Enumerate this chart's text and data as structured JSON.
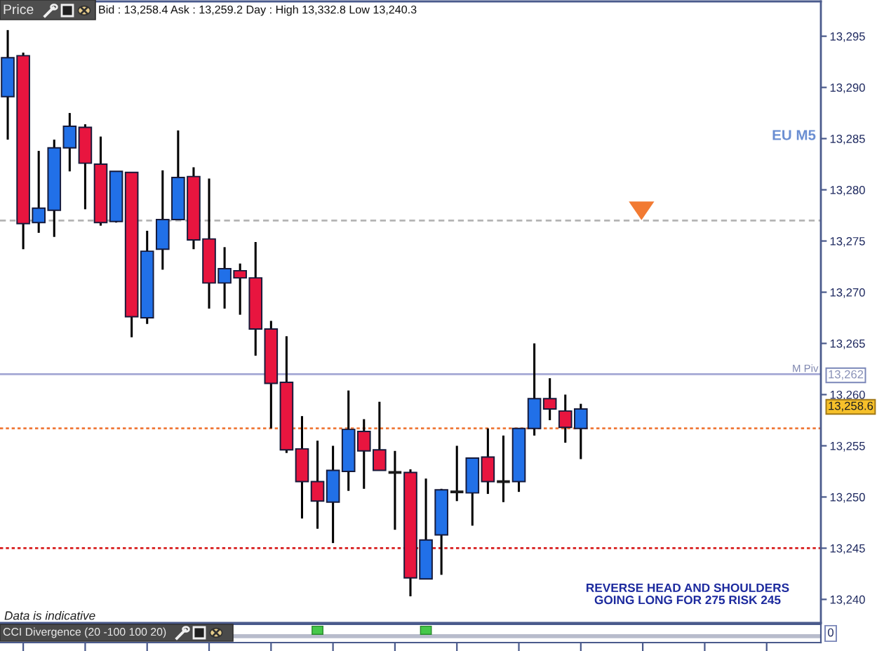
{
  "chart_data": {
    "type": "candlestick",
    "title": "Bid : 13,258.4 Ask : 13,259.2 Day : High 13,332.8 Low 13,240.3",
    "subtitle": "EU M5",
    "ylabel": "Price",
    "categories": [
      null,
      null,
      null,
      null,
      null,
      null,
      null,
      null,
      null,
      null,
      null,
      null,
      null,
      null,
      null,
      null,
      null,
      null,
      null,
      null,
      null,
      null,
      null,
      null,
      null,
      null,
      null,
      null,
      null,
      null,
      null,
      null,
      null,
      null,
      null,
      null,
      null,
      null,
      null,
      null,
      null,
      null,
      null,
      null,
      null,
      null,
      null,
      null,
      null,
      null,
      null,
      null,
      null
    ],
    "ohlc": [
      [
        13289.1,
        13295.6,
        13284.9,
        13292.9
      ],
      [
        13293.1,
        13293.4,
        13274.2,
        13276.7
      ],
      [
        13276.8,
        13283.8,
        13275.8,
        13278.2
      ],
      [
        13278.0,
        13284.9,
        13275.4,
        13284.1
      ],
      [
        13284.1,
        13287.5,
        13281.8,
        13286.2
      ],
      [
        13286.1,
        13286.4,
        13278.1,
        13282.6
      ],
      [
        13282.5,
        13285.2,
        13276.5,
        13276.8
      ],
      [
        13276.9,
        13281.8,
        13276.8,
        13281.8
      ],
      [
        13281.7,
        13281.7,
        13265.6,
        13267.6
      ],
      [
        13267.5,
        13276.0,
        13266.9,
        13274.0
      ],
      [
        13274.2,
        13281.9,
        13272.2,
        13277.1
      ],
      [
        13277.1,
        13285.8,
        13277.1,
        13281.2
      ],
      [
        13281.3,
        13282.2,
        13274.2,
        13275.1
      ],
      [
        13275.2,
        13281.1,
        13268.4,
        13270.9
      ],
      [
        13270.9,
        13274.4,
        13268.4,
        13272.3
      ],
      [
        13272.1,
        13272.8,
        13267.8,
        13271.4
      ],
      [
        13271.4,
        13274.9,
        13263.8,
        13266.4
      ],
      [
        13266.4,
        13267.2,
        13256.7,
        13261.1
      ],
      [
        13261.2,
        13265.7,
        13254.3,
        13254.6
      ],
      [
        13254.7,
        13257.9,
        13247.9,
        13251.5
      ],
      [
        13251.5,
        13255.5,
        13246.9,
        13249.6
      ],
      [
        13249.5,
        13255.0,
        13245.5,
        13252.6
      ],
      [
        13252.5,
        13260.4,
        13250.6,
        13256.6
      ],
      [
        13256.4,
        13257.6,
        13250.8,
        13254.5
      ],
      [
        13254.6,
        13259.3,
        13252.6,
        13252.6
      ],
      [
        13252.4,
        13254.5,
        13246.8,
        13252.4
      ],
      [
        13252.4,
        13252.7,
        13240.3,
        13242.1
      ],
      [
        13242.0,
        13251.8,
        13242.0,
        13245.8
      ],
      [
        13246.3,
        13250.8,
        13242.4,
        13250.7
      ],
      [
        13250.5,
        13255.0,
        13249.6,
        13250.5
      ],
      [
        13250.4,
        13253.8,
        13247.2,
        13253.8
      ],
      [
        13253.9,
        13256.7,
        13250.3,
        13251.5
      ],
      [
        13251.5,
        13256.0,
        13249.5,
        13251.5
      ],
      [
        13251.5,
        13256.7,
        13250.5,
        13256.7
      ],
      [
        13256.7,
        13265.0,
        13256.0,
        13259.6
      ],
      [
        13259.6,
        13261.6,
        13257.5,
        13258.6
      ],
      [
        13258.4,
        13260.0,
        13255.3,
        13256.8
      ],
      [
        13256.7,
        13259.1,
        13253.7,
        13258.6
      ],
      null,
      null,
      null,
      null,
      null,
      null,
      null,
      null,
      null,
      null,
      null,
      null,
      null,
      null,
      null
    ],
    "colors": [
      "#2170e8",
      "#e8153f",
      "#2170e8",
      "#2170e8",
      "#2170e8",
      "#e8153f",
      "#e8153f",
      "#2170e8",
      "#e8153f",
      "#2170e8",
      "#2170e8",
      "#2170e8",
      "#e8153f",
      "#e8153f",
      "#2170e8",
      "#e8153f",
      "#e8153f",
      "#e8153f",
      "#e8153f",
      "#e8153f",
      "#e8153f",
      "#2170e8",
      "#2170e8",
      "#e8153f",
      "#e8153f",
      "#1a1a1a",
      "#e8153f",
      "#2170e8",
      "#2170e8",
      "#1a1a1a",
      "#2170e8",
      "#e8153f",
      "#1a1a1a",
      "#2170e8",
      "#2170e8",
      "#e8153f",
      "#e8153f",
      "#2170e8",
      null,
      null,
      null,
      null,
      null,
      null,
      null,
      null,
      null,
      null,
      null,
      null,
      null,
      null,
      null
    ],
    "ylim": [
      13237.7,
      13298.4
    ],
    "yticks": [
      {
        "value": 13240,
        "label": "13,240"
      },
      {
        "value": 13245,
        "label": "13,245"
      },
      {
        "value": 13250,
        "label": "13,250"
      },
      {
        "value": 13255,
        "label": "13,255"
      },
      {
        "value": 13260,
        "label": "13,260"
      },
      {
        "value": 13265,
        "label": "13,265"
      },
      {
        "value": 13270,
        "label": "13,270"
      },
      {
        "value": 13275,
        "label": "13,275"
      },
      {
        "value": 13280,
        "label": "13,280"
      },
      {
        "value": 13285,
        "label": "13,285"
      },
      {
        "value": 13290,
        "label": "13,290"
      },
      {
        "value": 13295,
        "label": "13,295"
      }
    ],
    "ref_lines": [
      {
        "axis": "y",
        "value": 13262,
        "label": "M Piv",
        "color": "#a4a8d4",
        "line_style": "solid"
      },
      {
        "axis": "y",
        "value": 13277.0,
        "color": "#b4b4b4",
        "line_style": "dashed"
      },
      {
        "axis": "y",
        "value": 13256.7,
        "color": "#f07838",
        "line_style": "dotted"
      },
      {
        "axis": "y",
        "value": 13245.0,
        "color": "#d81c1c",
        "line_style": "dotted"
      }
    ],
    "annotations": [
      "REVERSE HEAD AND SHOULDERS\nGOING LONG FOR 275 RISK 245",
      "Data is indicative",
      "CCI Divergence (20 -100 100 20)",
      "0",
      "13,262",
      "13,258.6"
    ],
    "tick_labels": "y"
  }
}
